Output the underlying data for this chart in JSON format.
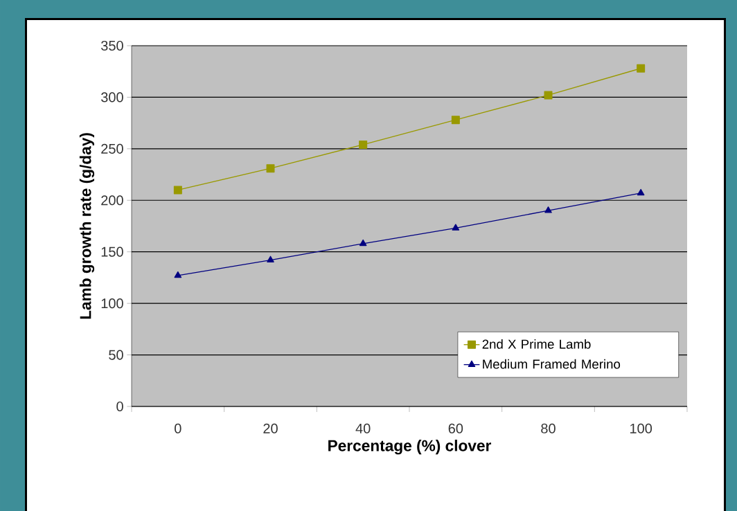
{
  "chart_data": {
    "type": "line",
    "xlabel": "Percentage (%) clover",
    "ylabel": "Lamb growth rate (g/day)",
    "categories": [
      "0",
      "20",
      "40",
      "60",
      "80",
      "100"
    ],
    "series": [
      {
        "name": "2nd X Prime Lamb",
        "color": "#999900",
        "marker": "square",
        "values": [
          210,
          231,
          254,
          278,
          302,
          328
        ]
      },
      {
        "name": "Medium Framed Merino",
        "color": "#000080",
        "marker": "triangle",
        "values": [
          127,
          142,
          158,
          173,
          190,
          207
        ]
      }
    ],
    "ylim": [
      0,
      350
    ],
    "yticks": [
      0,
      50,
      100,
      150,
      200,
      250,
      300,
      350
    ],
    "grid": "y",
    "legend": "bottom right",
    "line_style": "solid"
  }
}
